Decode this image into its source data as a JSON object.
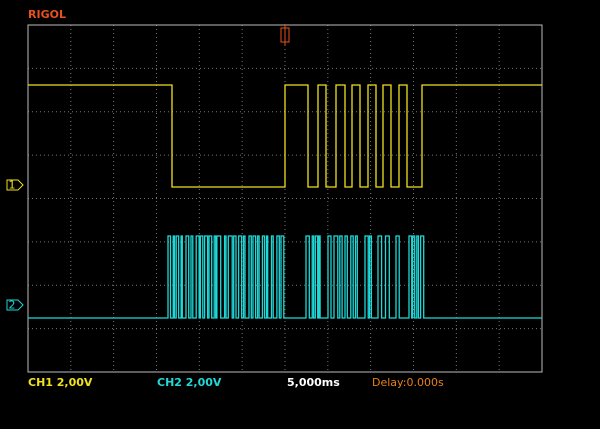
{
  "header": {
    "brand": "RIGOL"
  },
  "channels": [
    {
      "marker": "1",
      "label": "CH1 2,00V"
    },
    {
      "marker": "2",
      "label": "CH2 2,00V"
    }
  ],
  "timebase": "5,000ms",
  "delay": "Delay:0.000s"
}
